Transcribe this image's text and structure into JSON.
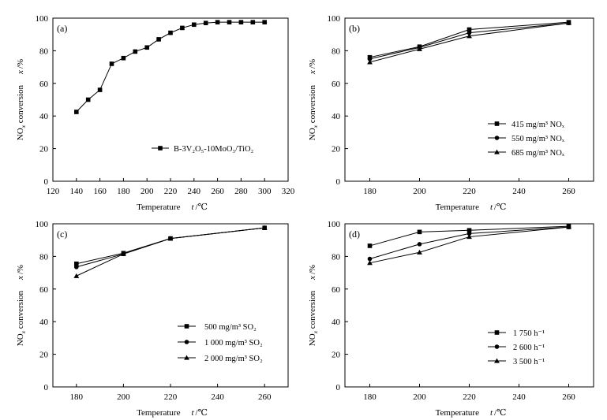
{
  "chart_data": [
    {
      "type": "line",
      "panel_label": "(a)",
      "xlabel": "Temperature",
      "xunit_symbol": "t",
      "xunit": "/℃",
      "ylabel": "NO",
      "ylabel_sub": "x",
      "ylabel_rest": " conversion",
      "yunit_symbol": "x",
      "yunit": "/%",
      "xlim": [
        120,
        320
      ],
      "ylim": [
        0,
        100
      ],
      "xticks": [
        120,
        140,
        160,
        180,
        200,
        220,
        240,
        260,
        280,
        300,
        320
      ],
      "yticks": [
        0,
        20,
        40,
        60,
        80,
        100
      ],
      "legend_position": "right-middle",
      "series": [
        {
          "name": "B-3V₂O₅-10MoO₃/TiO₂",
          "marker": "square",
          "x": [
            140,
            150,
            160,
            170,
            180,
            190,
            200,
            210,
            220,
            230,
            240,
            250,
            260,
            270,
            280,
            290,
            300
          ],
          "values": [
            42.5,
            50,
            56,
            72,
            75.5,
            79.5,
            82,
            87,
            91,
            94,
            96,
            97,
            97.5,
            97.5,
            97.5,
            97.5,
            97.5
          ]
        }
      ]
    },
    {
      "type": "line",
      "panel_label": "(b)",
      "xlabel": "Temperature",
      "xunit_symbol": "t",
      "xunit": "/℃",
      "ylabel": "NO",
      "ylabel_sub": "x",
      "ylabel_rest": " conversion",
      "yunit_symbol": "x",
      "yunit": "/%",
      "xlim": [
        170,
        270
      ],
      "ylim": [
        0,
        100
      ],
      "xticks": [
        180,
        200,
        220,
        240,
        260
      ],
      "yticks": [
        0,
        20,
        40,
        60,
        80,
        100
      ],
      "legend_position": "bottom-right",
      "series": [
        {
          "name": "415 mg/m³ NOₓ",
          "marker": "square",
          "x": [
            180,
            200,
            220,
            260
          ],
          "values": [
            76,
            82.5,
            93,
            97.5
          ]
        },
        {
          "name": "550 mg/m³ NOₓ",
          "marker": "circle",
          "x": [
            180,
            200,
            220,
            260
          ],
          "values": [
            75,
            82,
            91,
            97
          ]
        },
        {
          "name": "685 mg/m³ NOₓ",
          "marker": "triangle",
          "x": [
            180,
            200,
            220,
            260
          ],
          "values": [
            73,
            81,
            89,
            97
          ]
        }
      ]
    },
    {
      "type": "line",
      "panel_label": "(c)",
      "xlabel": "Temperature",
      "xunit_symbol": "t",
      "xunit": "/℃",
      "ylabel": "NO",
      "ylabel_sub": "x",
      "ylabel_rest": " conversion",
      "yunit_symbol": "x",
      "yunit": "/%",
      "xlim": [
        170,
        270
      ],
      "ylim": [
        0,
        100
      ],
      "xticks": [
        180,
        200,
        220,
        240,
        260
      ],
      "yticks": [
        0,
        20,
        40,
        60,
        80,
        100
      ],
      "legend_position": "bottom-right",
      "series": [
        {
          "name": "500 mg/m³ SO₂",
          "marker": "square",
          "x": [
            180,
            200,
            220,
            260
          ],
          "values": [
            75.5,
            82,
            91,
            97.5
          ]
        },
        {
          "name": "1 000 mg/m³ SO₂",
          "marker": "circle",
          "x": [
            180,
            200,
            220,
            260
          ],
          "values": [
            73.5,
            81.5,
            91,
            97.5
          ]
        },
        {
          "name": "2 000 mg/m³ SO₂",
          "marker": "triangle",
          "x": [
            180,
            200,
            220,
            260
          ],
          "values": [
            68,
            81.5,
            91,
            97.5
          ]
        }
      ]
    },
    {
      "type": "line",
      "panel_label": "(d)",
      "xlabel": "Temperature",
      "xunit_symbol": "t",
      "xunit": "/℃",
      "ylabel": "NO",
      "ylabel_sub": "x",
      "ylabel_rest": " conversion",
      "yunit_symbol": "x",
      "yunit": "/%",
      "xlim": [
        170,
        270
      ],
      "ylim": [
        0,
        100
      ],
      "xticks": [
        180,
        200,
        220,
        240,
        260
      ],
      "yticks": [
        0,
        20,
        40,
        60,
        80,
        100
      ],
      "legend_position": "bottom-right",
      "series": [
        {
          "name": "1 750 h⁻¹",
          "marker": "square",
          "x": [
            180,
            200,
            220,
            260
          ],
          "values": [
            86.5,
            95,
            96,
            98.5
          ]
        },
        {
          "name": "2 600 h⁻¹",
          "marker": "circle",
          "x": [
            180,
            200,
            220,
            260
          ],
          "values": [
            78.5,
            87.5,
            94,
            98
          ]
        },
        {
          "name": "3 500 h⁻¹",
          "marker": "triangle",
          "x": [
            180,
            200,
            220,
            260
          ],
          "values": [
            76,
            82.5,
            92,
            98
          ]
        }
      ]
    }
  ]
}
